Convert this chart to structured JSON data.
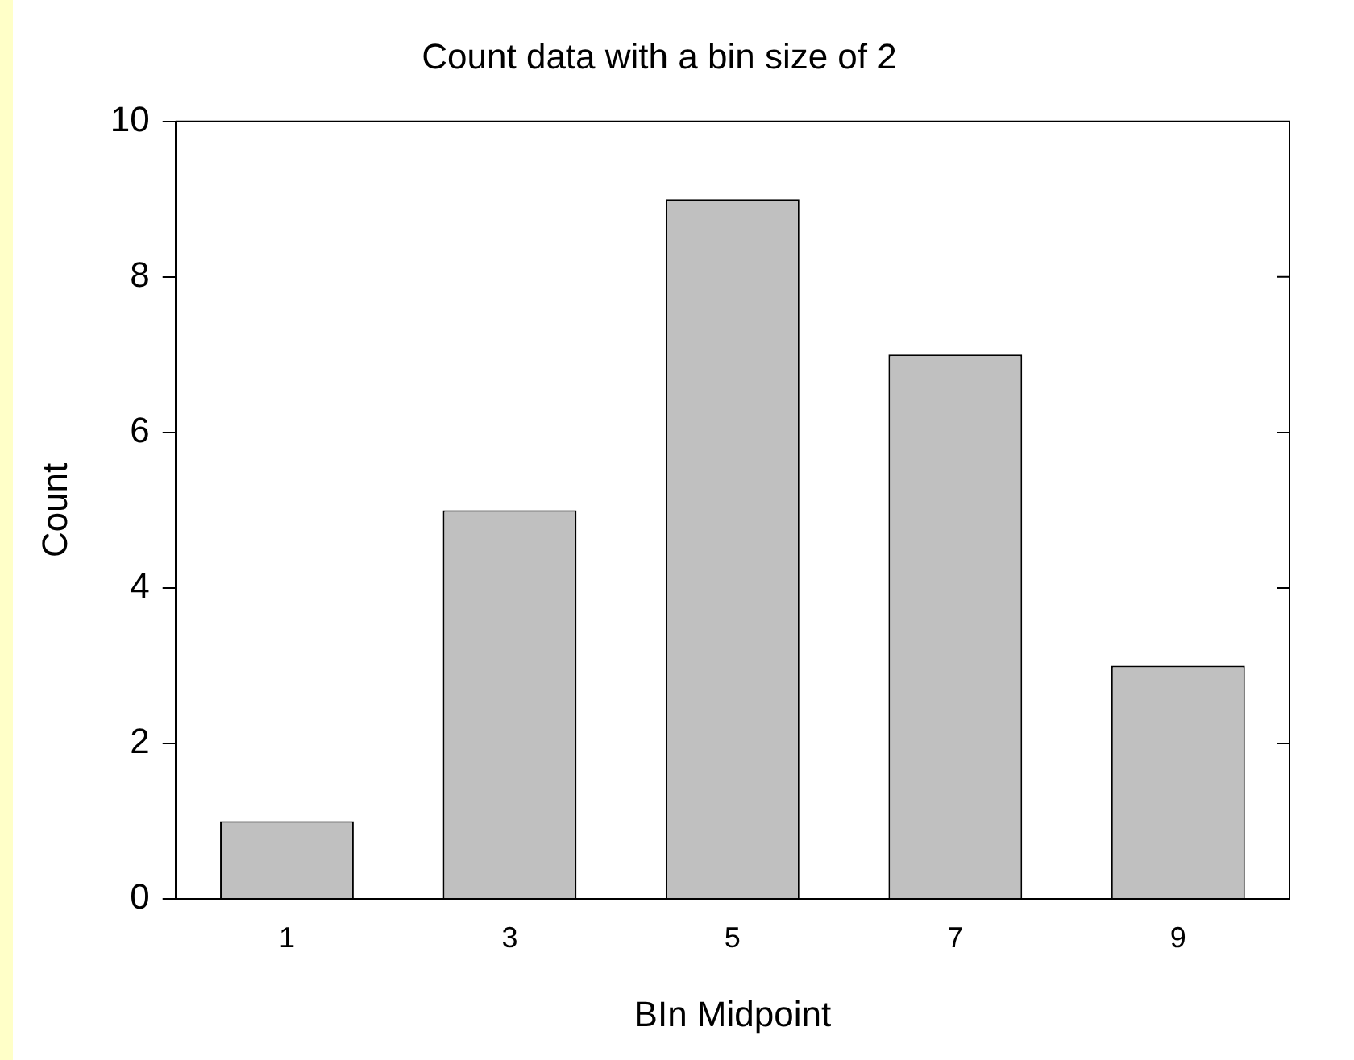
{
  "chart_data": {
    "type": "bar",
    "title": "Count data with a bin size of 2",
    "xlabel": "BIn Midpoint",
    "ylabel": "Count",
    "categories": [
      "1",
      "3",
      "5",
      "7",
      "9"
    ],
    "values": [
      1,
      5,
      9,
      7,
      3
    ],
    "color": "#c0c0c0",
    "ylim": [
      0,
      10
    ],
    "yticks": [
      0,
      2,
      4,
      6,
      8,
      10
    ],
    "grid": false,
    "legend": false
  }
}
